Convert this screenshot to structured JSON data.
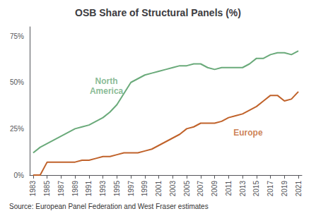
{
  "chart_data": {
    "type": "line",
    "title": "OSB Share of Structural Panels (%)",
    "source": "Source: European Panel Federation and West Fraser estimates",
    "x": [
      1983,
      1984,
      1985,
      1986,
      1987,
      1988,
      1989,
      1990,
      1991,
      1992,
      1993,
      1994,
      1995,
      1996,
      1997,
      1998,
      1999,
      2000,
      2001,
      2002,
      2003,
      2004,
      2005,
      2006,
      2007,
      2008,
      2009,
      2010,
      2011,
      2012,
      2013,
      2014,
      2015,
      2016,
      2017,
      2018,
      2019,
      2020,
      2021
    ],
    "series": [
      {
        "color": "#6aaa7a",
        "values": [
          12,
          15,
          17,
          19,
          21,
          23,
          25,
          26,
          27,
          29,
          31,
          34,
          38,
          44,
          50,
          52,
          54,
          55,
          56,
          57,
          58,
          59,
          59,
          60,
          60,
          58,
          57,
          58,
          58,
          58,
          58,
          60,
          63,
          63,
          65,
          66,
          66,
          65,
          67
        ]
      },
      {
        "color": "#c0622a",
        "values": [
          0,
          0,
          7,
          7,
          7,
          7,
          7,
          8,
          8,
          9,
          10,
          10,
          11,
          12,
          12,
          12,
          13,
          14,
          16,
          18,
          20,
          22,
          25,
          26,
          28,
          28,
          28,
          29,
          31,
          32,
          33,
          35,
          37,
          40,
          43,
          43,
          40,
          41,
          45
        ]
      }
    ],
    "annotations": [
      {
        "text": "North\nAmerica",
        "x": 1993.5,
        "y": 42,
        "color": "#6aaa7a"
      },
      {
        "text": "Europe",
        "x": 2011.5,
        "y": 23,
        "color": "#c0622a"
      }
    ],
    "xlim": [
      1982.5,
      2021.5
    ],
    "xticks": [
      1983,
      1985,
      1987,
      1989,
      1991,
      1993,
      1995,
      1997,
      1999,
      2001,
      2003,
      2005,
      2007,
      2009,
      2011,
      2013,
      2015,
      2017,
      2019,
      2021
    ],
    "ylim": [
      0,
      80
    ],
    "yticks": [
      {
        "value": 0,
        "label": "0%"
      },
      {
        "value": 25,
        "label": "25%"
      },
      {
        "value": 50,
        "label": "50%"
      },
      {
        "value": 75,
        "label": "75%"
      }
    ],
    "grid": false
  }
}
